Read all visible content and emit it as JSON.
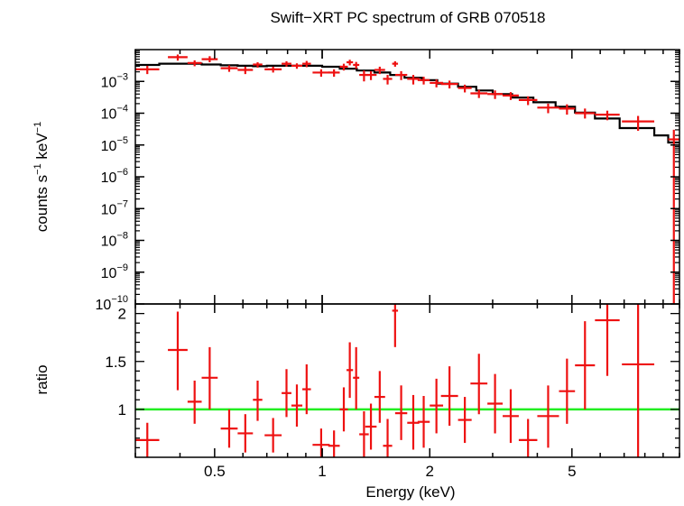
{
  "chart_data": {
    "type": "scatter",
    "title": "Swift−XRT PC spectrum of GRB 070518",
    "xlabel": "Energy (keV)",
    "x_scale": "log",
    "xlim": [
      0.3,
      10.0
    ],
    "x_ticks": [
      {
        "value": 0.5,
        "label": "0.5"
      },
      {
        "value": 1,
        "label": "1"
      },
      {
        "value": 2,
        "label": "2"
      },
      {
        "value": 5,
        "label": "5"
      }
    ],
    "panels": [
      {
        "id": "spectrum",
        "ylabel": {
          "base": "counts s",
          "exp1": "−1",
          "mid": " keV",
          "exp2": "−1"
        },
        "y_scale": "log",
        "ylim": [
          1e-10,
          0.01
        ],
        "y_ticks": [
          {
            "value": 0.001,
            "base": "10",
            "exp": "−3"
          },
          {
            "value": 0.0001,
            "base": "10",
            "exp": "−4"
          },
          {
            "value": 1e-05,
            "base": "10",
            "exp": "−5"
          },
          {
            "value": 1e-06,
            "base": "10",
            "exp": "−6"
          },
          {
            "value": 1e-07,
            "base": "10",
            "exp": "−7"
          },
          {
            "value": 1e-08,
            "base": "10",
            "exp": "−8"
          },
          {
            "value": 1e-09,
            "base": "10",
            "exp": "−9"
          },
          {
            "value": 1e-10,
            "base": "10",
            "exp": "−10"
          }
        ],
        "series": [
          {
            "name": "data",
            "color": "#ee1111",
            "points": [
              {
                "x1": 0.3,
                "x2": 0.35,
                "y": 0.0024,
                "lo": 0.0017,
                "hi": 0.0031
              },
              {
                "x1": 0.37,
                "x2": 0.42,
                "y": 0.0058,
                "lo": 0.0045,
                "hi": 0.007
              },
              {
                "x1": 0.42,
                "x2": 0.46,
                "y": 0.0038,
                "lo": 0.003,
                "hi": 0.0046
              },
              {
                "x1": 0.46,
                "x2": 0.51,
                "y": 0.005,
                "lo": 0.004,
                "hi": 0.0062
              },
              {
                "x1": 0.52,
                "x2": 0.58,
                "y": 0.0026,
                "lo": 0.002,
                "hi": 0.0032
              },
              {
                "x1": 0.58,
                "x2": 0.64,
                "y": 0.0023,
                "lo": 0.0017,
                "hi": 0.0029
              },
              {
                "x1": 0.64,
                "x2": 0.68,
                "y": 0.0034,
                "lo": 0.0027,
                "hi": 0.004
              },
              {
                "x1": 0.69,
                "x2": 0.77,
                "y": 0.0024,
                "lo": 0.0019,
                "hi": 0.0029
              },
              {
                "x1": 0.77,
                "x2": 0.82,
                "y": 0.0036,
                "lo": 0.0029,
                "hi": 0.0043
              },
              {
                "x1": 0.82,
                "x2": 0.88,
                "y": 0.0031,
                "lo": 0.0025,
                "hi": 0.0037
              },
              {
                "x1": 0.88,
                "x2": 0.93,
                "y": 0.0036,
                "lo": 0.0028,
                "hi": 0.0044
              },
              {
                "x1": 0.94,
                "x2": 1.05,
                "y": 0.0019,
                "lo": 0.0014,
                "hi": 0.0024
              },
              {
                "x1": 1.04,
                "x2": 1.12,
                "y": 0.0019,
                "lo": 0.0014,
                "hi": 0.0024
              },
              {
                "x1": 1.12,
                "x2": 1.18,
                "y": 0.0029,
                "lo": 0.0022,
                "hi": 0.0036
              },
              {
                "x1": 1.17,
                "x2": 1.22,
                "y": 0.004,
                "lo": 0.0032,
                "hi": 0.0048
              },
              {
                "x1": 1.22,
                "x2": 1.27,
                "y": 0.0033,
                "lo": 0.0025,
                "hi": 0.0041
              },
              {
                "x1": 1.27,
                "x2": 1.35,
                "y": 0.0016,
                "lo": 0.001,
                "hi": 0.0022
              },
              {
                "x1": 1.32,
                "x2": 1.42,
                "y": 0.0016,
                "lo": 0.0011,
                "hi": 0.0021
              },
              {
                "x1": 1.4,
                "x2": 1.5,
                "y": 0.0023,
                "lo": 0.0017,
                "hi": 0.0029
              },
              {
                "x1": 1.48,
                "x2": 1.57,
                "y": 0.0012,
                "lo": 0.0008,
                "hi": 0.0016
              },
              {
                "x1": 1.57,
                "x2": 1.63,
                "y": 0.0036,
                "lo": 0.0029,
                "hi": 0.0043
              },
              {
                "x1": 1.6,
                "x2": 1.73,
                "y": 0.0016,
                "lo": 0.0011,
                "hi": 0.0021
              },
              {
                "x1": 1.73,
                "x2": 1.87,
                "y": 0.0012,
                "lo": 0.0008,
                "hi": 0.0016
              },
              {
                "x1": 1.85,
                "x2": 2.0,
                "y": 0.0011,
                "lo": 0.0008,
                "hi": 0.0014
              },
              {
                "x1": 2.0,
                "x2": 2.18,
                "y": 0.0009,
                "lo": 0.00065,
                "hi": 0.00115
              },
              {
                "x1": 2.15,
                "x2": 2.4,
                "y": 0.00083,
                "lo": 0.0006,
                "hi": 0.00106
              },
              {
                "x1": 2.4,
                "x2": 2.62,
                "y": 0.00062,
                "lo": 0.00045,
                "hi": 0.00079
              },
              {
                "x1": 2.6,
                "x2": 2.9,
                "y": 0.00042,
                "lo": 0.0003,
                "hi": 0.00054
              },
              {
                "x1": 2.9,
                "x2": 3.2,
                "y": 0.0004,
                "lo": 0.00028,
                "hi": 0.00052
              },
              {
                "x1": 3.2,
                "x2": 3.55,
                "y": 0.00036,
                "lo": 0.00026,
                "hi": 0.00046
              },
              {
                "x1": 3.55,
                "x2": 4.0,
                "y": 0.00026,
                "lo": 0.00018,
                "hi": 0.00034
              },
              {
                "x1": 4.0,
                "x2": 4.6,
                "y": 0.00015,
                "lo": 0.0001,
                "hi": 0.0002
              },
              {
                "x1": 4.6,
                "x2": 5.1,
                "y": 0.00014,
                "lo": 9e-05,
                "hi": 0.00019
              },
              {
                "x1": 5.1,
                "x2": 5.8,
                "y": 0.0001,
                "lo": 6.8e-05,
                "hi": 0.00014
              },
              {
                "x1": 5.8,
                "x2": 6.8,
                "y": 9e-05,
                "lo": 6e-05,
                "hi": 0.00012
              },
              {
                "x1": 6.9,
                "x2": 8.5,
                "y": 5.5e-05,
                "lo": 2.8e-05,
                "hi": 8.2e-05
              },
              {
                "x1": 9.3,
                "x2": 10.0,
                "y": 1.5e-05,
                "lo": 1e-10,
                "hi": 3e-05
              }
            ]
          },
          {
            "name": "model",
            "color": "#000000",
            "step": [
              {
                "x1": 0.3,
                "x2": 0.35,
                "y": 0.0033
              },
              {
                "x1": 0.35,
                "x2": 0.4,
                "y": 0.0036
              },
              {
                "x1": 0.4,
                "x2": 0.46,
                "y": 0.0036
              },
              {
                "x1": 0.46,
                "x2": 0.52,
                "y": 0.0034
              },
              {
                "x1": 0.52,
                "x2": 0.58,
                "y": 0.0032
              },
              {
                "x1": 0.58,
                "x2": 0.64,
                "y": 0.0031
              },
              {
                "x1": 0.64,
                "x2": 0.7,
                "y": 0.003
              },
              {
                "x1": 0.7,
                "x2": 0.8,
                "y": 0.0031
              },
              {
                "x1": 0.8,
                "x2": 0.9,
                "y": 0.0031
              },
              {
                "x1": 0.9,
                "x2": 1.0,
                "y": 0.0031
              },
              {
                "x1": 1.0,
                "x2": 1.12,
                "y": 0.0029
              },
              {
                "x1": 1.12,
                "x2": 1.25,
                "y": 0.0025
              },
              {
                "x1": 1.25,
                "x2": 1.4,
                "y": 0.0022
              },
              {
                "x1": 1.4,
                "x2": 1.55,
                "y": 0.0019
              },
              {
                "x1": 1.55,
                "x2": 1.7,
                "y": 0.0016
              },
              {
                "x1": 1.7,
                "x2": 1.9,
                "y": 0.0013
              },
              {
                "x1": 1.9,
                "x2": 2.1,
                "y": 0.0011
              },
              {
                "x1": 2.1,
                "x2": 2.4,
                "y": 0.00085
              },
              {
                "x1": 2.4,
                "x2": 2.7,
                "y": 0.00068
              },
              {
                "x1": 2.7,
                "x2": 3.0,
                "y": 0.00052
              },
              {
                "x1": 3.0,
                "x2": 3.4,
                "y": 0.0004
              },
              {
                "x1": 3.4,
                "x2": 3.9,
                "y": 0.00031
              },
              {
                "x1": 3.9,
                "x2": 4.5,
                "y": 0.00022
              },
              {
                "x1": 4.5,
                "x2": 5.1,
                "y": 0.00016
              },
              {
                "x1": 5.1,
                "x2": 5.8,
                "y": 0.000105
              },
              {
                "x1": 5.8,
                "x2": 6.8,
                "y": 6.8e-05
              },
              {
                "x1": 6.8,
                "x2": 8.5,
                "y": 3.4e-05
              },
              {
                "x1": 8.5,
                "x2": 9.3,
                "y": 2e-05
              },
              {
                "x1": 9.3,
                "x2": 10.0,
                "y": 1.2e-05
              }
            ]
          }
        ]
      },
      {
        "id": "ratio",
        "ylabel": "ratio",
        "y_scale": "linear",
        "ylim": [
          0.5,
          2.1
        ],
        "y_ticks": [
          {
            "value": 1,
            "label": "1"
          },
          {
            "value": 1.5,
            "label": "1.5"
          },
          {
            "value": 2,
            "label": "2"
          }
        ],
        "reference_line": {
          "y": 1,
          "color": "#22ee22"
        },
        "series": [
          {
            "name": "ratio",
            "color": "#ee1111",
            "points": [
              {
                "x1": 0.3,
                "x2": 0.35,
                "y": 0.68,
                "lo": 0.5,
                "hi": 0.86
              },
              {
                "x1": 0.37,
                "x2": 0.42,
                "y": 1.62,
                "lo": 1.2,
                "hi": 2.02
              },
              {
                "x1": 0.42,
                "x2": 0.46,
                "y": 1.08,
                "lo": 0.85,
                "hi": 1.3
              },
              {
                "x1": 0.46,
                "x2": 0.51,
                "y": 1.33,
                "lo": 1.0,
                "hi": 1.65
              },
              {
                "x1": 0.52,
                "x2": 0.58,
                "y": 0.8,
                "lo": 0.6,
                "hi": 1.0
              },
              {
                "x1": 0.58,
                "x2": 0.64,
                "y": 0.75,
                "lo": 0.55,
                "hi": 0.95
              },
              {
                "x1": 0.64,
                "x2": 0.68,
                "y": 1.1,
                "lo": 0.88,
                "hi": 1.3
              },
              {
                "x1": 0.69,
                "x2": 0.77,
                "y": 0.73,
                "lo": 0.55,
                "hi": 0.91
              },
              {
                "x1": 0.77,
                "x2": 0.82,
                "y": 1.17,
                "lo": 0.92,
                "hi": 1.42
              },
              {
                "x1": 0.82,
                "x2": 0.88,
                "y": 1.04,
                "lo": 0.82,
                "hi": 1.26
              },
              {
                "x1": 0.88,
                "x2": 0.93,
                "y": 1.21,
                "lo": 0.95,
                "hi": 1.47
              },
              {
                "x1": 0.94,
                "x2": 1.05,
                "y": 0.63,
                "lo": 0.5,
                "hi": 0.8
              },
              {
                "x1": 1.04,
                "x2": 1.12,
                "y": 0.62,
                "lo": 0.5,
                "hi": 0.78
              },
              {
                "x1": 1.12,
                "x2": 1.18,
                "y": 1.0,
                "lo": 0.77,
                "hi": 1.23
              },
              {
                "x1": 1.17,
                "x2": 1.22,
                "y": 1.41,
                "lo": 1.12,
                "hi": 1.7
              },
              {
                "x1": 1.22,
                "x2": 1.27,
                "y": 1.33,
                "lo": 1.0,
                "hi": 1.65
              },
              {
                "x1": 1.27,
                "x2": 1.35,
                "y": 0.74,
                "lo": 0.5,
                "hi": 0.98
              },
              {
                "x1": 1.32,
                "x2": 1.42,
                "y": 0.82,
                "lo": 0.58,
                "hi": 1.06
              },
              {
                "x1": 1.4,
                "x2": 1.5,
                "y": 1.13,
                "lo": 0.86,
                "hi": 1.4
              },
              {
                "x1": 1.48,
                "x2": 1.57,
                "y": 0.62,
                "lo": 0.5,
                "hi": 0.9
              },
              {
                "x1": 1.57,
                "x2": 1.63,
                "y": 2.03,
                "lo": 1.65,
                "hi": 2.1
              },
              {
                "x1": 1.6,
                "x2": 1.73,
                "y": 0.96,
                "lo": 0.68,
                "hi": 1.25
              },
              {
                "x1": 1.73,
                "x2": 1.87,
                "y": 0.86,
                "lo": 0.58,
                "hi": 1.15
              },
              {
                "x1": 1.85,
                "x2": 2.0,
                "y": 0.87,
                "lo": 0.6,
                "hi": 1.14
              },
              {
                "x1": 2.0,
                "x2": 2.18,
                "y": 1.04,
                "lo": 0.75,
                "hi": 1.32
              },
              {
                "x1": 2.15,
                "x2": 2.4,
                "y": 1.14,
                "lo": 0.83,
                "hi": 1.45
              },
              {
                "x1": 2.4,
                "x2": 2.62,
                "y": 0.89,
                "lo": 0.65,
                "hi": 1.13
              },
              {
                "x1": 2.6,
                "x2": 2.9,
                "y": 1.27,
                "lo": 0.95,
                "hi": 1.58
              },
              {
                "x1": 2.9,
                "x2": 3.2,
                "y": 1.06,
                "lo": 0.75,
                "hi": 1.37
              },
              {
                "x1": 3.2,
                "x2": 3.55,
                "y": 0.93,
                "lo": 0.65,
                "hi": 1.21
              },
              {
                "x1": 3.55,
                "x2": 4.0,
                "y": 0.68,
                "lo": 0.5,
                "hi": 0.9
              },
              {
                "x1": 4.0,
                "x2": 4.6,
                "y": 0.93,
                "lo": 0.6,
                "hi": 1.25
              },
              {
                "x1": 4.6,
                "x2": 5.1,
                "y": 1.19,
                "lo": 0.85,
                "hi": 1.53
              },
              {
                "x1": 5.1,
                "x2": 5.8,
                "y": 1.46,
                "lo": 1.0,
                "hi": 1.92
              },
              {
                "x1": 5.8,
                "x2": 6.8,
                "y": 1.93,
                "lo": 1.35,
                "hi": 2.1
              },
              {
                "x1": 6.9,
                "x2": 8.5,
                "y": 1.47,
                "lo": 0.5,
                "hi": 2.1
              }
            ]
          }
        ]
      }
    ]
  }
}
